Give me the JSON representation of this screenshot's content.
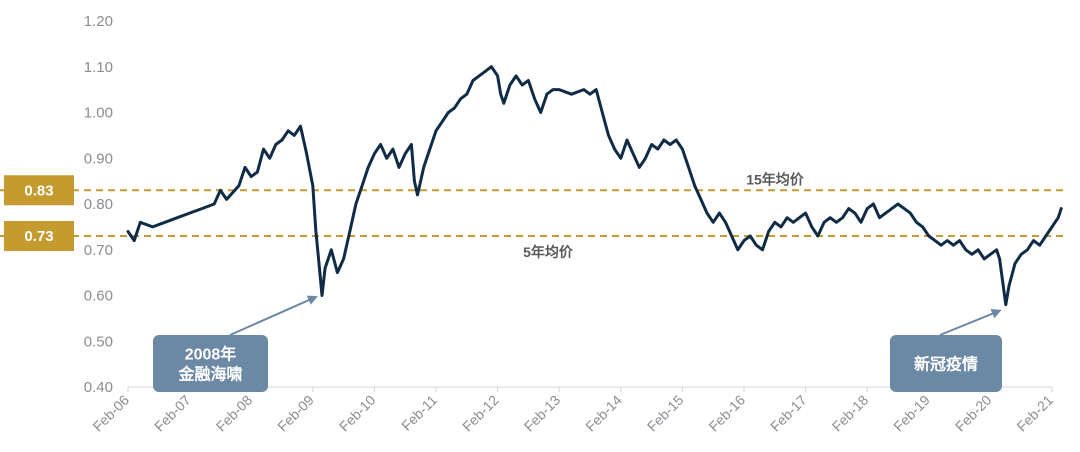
{
  "chart_data": {
    "type": "line",
    "title": "",
    "xlabel": "",
    "ylabel": "",
    "ylim": [
      0.4,
      1.2
    ],
    "yticks": [
      "0.40",
      "0.50",
      "0.60",
      "0.70",
      "0.80",
      "0.90",
      "1.00",
      "1.10",
      "1.20"
    ],
    "categories": [
      "Feb-06",
      "Feb-07",
      "Feb-08",
      "Feb-09",
      "Feb-10",
      "Feb-11",
      "Feb-12",
      "Feb-13",
      "Feb-14",
      "Feb-15",
      "Feb-16",
      "Feb-17",
      "Feb-18",
      "Feb-19",
      "Feb-20",
      "Feb-21"
    ],
    "series": [
      {
        "color": "#0f2b46",
        "points": [
          [
            2006.0,
            0.74
          ],
          [
            2006.1,
            0.72
          ],
          [
            2006.2,
            0.76
          ],
          [
            2006.4,
            0.75
          ],
          [
            2006.6,
            0.76
          ],
          [
            2006.8,
            0.77
          ],
          [
            2007.0,
            0.78
          ],
          [
            2007.2,
            0.79
          ],
          [
            2007.4,
            0.8
          ],
          [
            2007.5,
            0.83
          ],
          [
            2007.6,
            0.81
          ],
          [
            2007.8,
            0.84
          ],
          [
            2007.9,
            0.88
          ],
          [
            2008.0,
            0.86
          ],
          [
            2008.1,
            0.87
          ],
          [
            2008.2,
            0.92
          ],
          [
            2008.3,
            0.9
          ],
          [
            2008.4,
            0.93
          ],
          [
            2008.5,
            0.94
          ],
          [
            2008.6,
            0.96
          ],
          [
            2008.7,
            0.95
          ],
          [
            2008.8,
            0.97
          ],
          [
            2008.9,
            0.91
          ],
          [
            2009.0,
            0.84
          ],
          [
            2009.05,
            0.74
          ],
          [
            2009.1,
            0.67
          ],
          [
            2009.15,
            0.6
          ],
          [
            2009.2,
            0.66
          ],
          [
            2009.3,
            0.7
          ],
          [
            2009.4,
            0.65
          ],
          [
            2009.5,
            0.68
          ],
          [
            2009.6,
            0.74
          ],
          [
            2009.7,
            0.8
          ],
          [
            2009.8,
            0.84
          ],
          [
            2009.9,
            0.88
          ],
          [
            2010.0,
            0.91
          ],
          [
            2010.1,
            0.93
          ],
          [
            2010.2,
            0.9
          ],
          [
            2010.3,
            0.92
          ],
          [
            2010.4,
            0.88
          ],
          [
            2010.5,
            0.91
          ],
          [
            2010.6,
            0.93
          ],
          [
            2010.65,
            0.85
          ],
          [
            2010.7,
            0.82
          ],
          [
            2010.8,
            0.88
          ],
          [
            2010.9,
            0.92
          ],
          [
            2011.0,
            0.96
          ],
          [
            2011.1,
            0.98
          ],
          [
            2011.2,
            1.0
          ],
          [
            2011.3,
            1.01
          ],
          [
            2011.4,
            1.03
          ],
          [
            2011.5,
            1.04
          ],
          [
            2011.6,
            1.07
          ],
          [
            2011.7,
            1.08
          ],
          [
            2011.8,
            1.09
          ],
          [
            2011.9,
            1.1
          ],
          [
            2012.0,
            1.08
          ],
          [
            2012.05,
            1.04
          ],
          [
            2012.1,
            1.02
          ],
          [
            2012.2,
            1.06
          ],
          [
            2012.3,
            1.08
          ],
          [
            2012.4,
            1.06
          ],
          [
            2012.5,
            1.07
          ],
          [
            2012.6,
            1.03
          ],
          [
            2012.7,
            1.0
          ],
          [
            2012.8,
            1.04
          ],
          [
            2012.9,
            1.05
          ],
          [
            2013.0,
            1.05
          ],
          [
            2013.2,
            1.04
          ],
          [
            2013.4,
            1.05
          ],
          [
            2013.5,
            1.04
          ],
          [
            2013.6,
            1.05
          ],
          [
            2013.7,
            1.0
          ],
          [
            2013.8,
            0.95
          ],
          [
            2013.9,
            0.92
          ],
          [
            2014.0,
            0.9
          ],
          [
            2014.1,
            0.94
          ],
          [
            2014.2,
            0.91
          ],
          [
            2014.3,
            0.88
          ],
          [
            2014.4,
            0.9
          ],
          [
            2014.5,
            0.93
          ],
          [
            2014.6,
            0.92
          ],
          [
            2014.7,
            0.94
          ],
          [
            2014.8,
            0.93
          ],
          [
            2014.9,
            0.94
          ],
          [
            2015.0,
            0.92
          ],
          [
            2015.1,
            0.88
          ],
          [
            2015.2,
            0.84
          ],
          [
            2015.3,
            0.81
          ],
          [
            2015.4,
            0.78
          ],
          [
            2015.5,
            0.76
          ],
          [
            2015.6,
            0.78
          ],
          [
            2015.7,
            0.76
          ],
          [
            2015.8,
            0.73
          ],
          [
            2015.9,
            0.7
          ],
          [
            2016.0,
            0.72
          ],
          [
            2016.1,
            0.73
          ],
          [
            2016.2,
            0.71
          ],
          [
            2016.3,
            0.7
          ],
          [
            2016.4,
            0.74
          ],
          [
            2016.5,
            0.76
          ],
          [
            2016.6,
            0.75
          ],
          [
            2016.7,
            0.77
          ],
          [
            2016.8,
            0.76
          ],
          [
            2016.9,
            0.77
          ],
          [
            2017.0,
            0.78
          ],
          [
            2017.1,
            0.75
          ],
          [
            2017.2,
            0.73
          ],
          [
            2017.3,
            0.76
          ],
          [
            2017.4,
            0.77
          ],
          [
            2017.5,
            0.76
          ],
          [
            2017.6,
            0.77
          ],
          [
            2017.7,
            0.79
          ],
          [
            2017.8,
            0.78
          ],
          [
            2017.9,
            0.76
          ],
          [
            2018.0,
            0.79
          ],
          [
            2018.1,
            0.8
          ],
          [
            2018.2,
            0.77
          ],
          [
            2018.3,
            0.78
          ],
          [
            2018.4,
            0.79
          ],
          [
            2018.5,
            0.8
          ],
          [
            2018.6,
            0.79
          ],
          [
            2018.7,
            0.78
          ],
          [
            2018.8,
            0.76
          ],
          [
            2018.9,
            0.75
          ],
          [
            2019.0,
            0.73
          ],
          [
            2019.1,
            0.72
          ],
          [
            2019.2,
            0.71
          ],
          [
            2019.3,
            0.72
          ],
          [
            2019.4,
            0.71
          ],
          [
            2019.5,
            0.72
          ],
          [
            2019.6,
            0.7
          ],
          [
            2019.7,
            0.69
          ],
          [
            2019.8,
            0.7
          ],
          [
            2019.9,
            0.68
          ],
          [
            2020.0,
            0.69
          ],
          [
            2020.1,
            0.7
          ],
          [
            2020.15,
            0.68
          ],
          [
            2020.2,
            0.63
          ],
          [
            2020.25,
            0.58
          ],
          [
            2020.3,
            0.62
          ],
          [
            2020.4,
            0.67
          ],
          [
            2020.5,
            0.69
          ],
          [
            2020.6,
            0.7
          ],
          [
            2020.7,
            0.72
          ],
          [
            2020.8,
            0.71
          ],
          [
            2020.9,
            0.73
          ],
          [
            2021.0,
            0.75
          ],
          [
            2021.1,
            0.77
          ],
          [
            2021.15,
            0.79
          ]
        ]
      }
    ],
    "reference_lines": [
      {
        "value": 0.83,
        "badge": "0.83",
        "label": "15年均价",
        "color": "#c59a2e"
      },
      {
        "value": 0.73,
        "badge": "0.73",
        "label": "5年均价",
        "color": "#c59a2e"
      }
    ],
    "annotations": [
      {
        "lines": [
          "2008年",
          "金融海啸"
        ],
        "point": [
          2009.15,
          0.61
        ],
        "color": "#6b88a4"
      },
      {
        "lines": [
          "新冠疫情"
        ],
        "point": [
          2020.25,
          0.58
        ],
        "color": "#6b88a4"
      }
    ],
    "grid": false,
    "legend": "none"
  }
}
